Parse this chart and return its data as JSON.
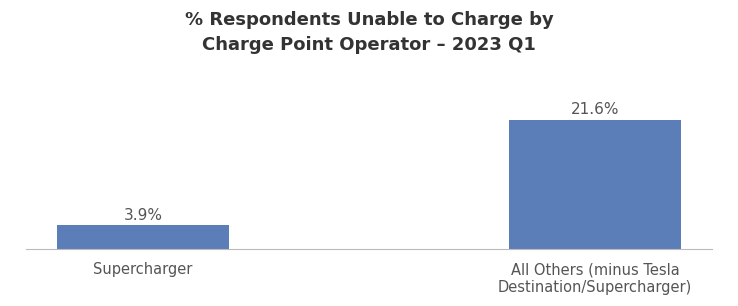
{
  "title": "% Respondents Unable to Charge by\nCharge Point Operator – 2023 Q1",
  "categories": [
    "Supercharger",
    "All Others (minus Tesla\nDestination/Supercharger)"
  ],
  "values": [
    3.9,
    21.6
  ],
  "bar_color": "#5b7eb8",
  "bar_labels": [
    "3.9%",
    "21.6%"
  ],
  "ylim": [
    0,
    30
  ],
  "title_fontsize": 13,
  "label_fontsize": 11,
  "tick_fontsize": 10.5,
  "background_color": "#ffffff",
  "bar_width": 0.38
}
